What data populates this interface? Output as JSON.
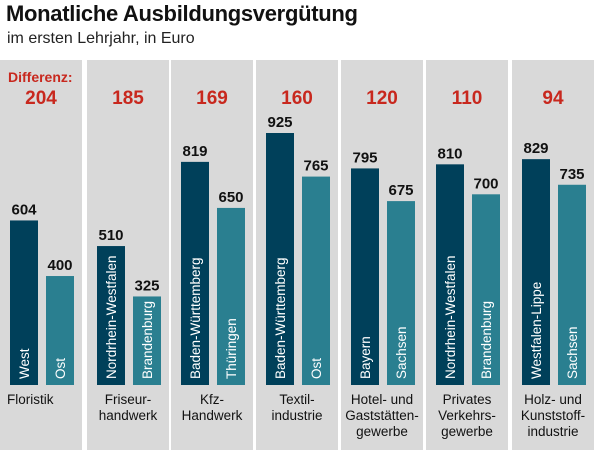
{
  "title": "Monatliche Ausbildungsvergütung",
  "subtitle": "im ersten Lehrjahr, in Euro",
  "colors": {
    "panel": "#d9d9d9",
    "bar_dark": "#00405a",
    "bar_light": "#2a7f90",
    "difference": "#c8281e"
  },
  "chart_data": {
    "type": "bar",
    "title": "Monatliche Ausbildungsvergütung",
    "subtitle": "im ersten Lehrjahr, in Euro",
    "difference_label": "Differenz:",
    "unit": "Euro",
    "ylim": [
      0,
      925
    ],
    "grid": false,
    "groups": [
      {
        "category": [
          "Floristik"
        ],
        "difference": 204,
        "bars": [
          {
            "label": "West",
            "value": 604
          },
          {
            "label": "Ost",
            "value": 400
          }
        ]
      },
      {
        "category": [
          "Friseur-",
          "handwerk"
        ],
        "difference": 185,
        "bars": [
          {
            "label": "Nordrhein-Westfalen",
            "value": 510
          },
          {
            "label": "Brandenburg",
            "value": 325
          }
        ]
      },
      {
        "category": [
          "Kfz-",
          "Handwerk"
        ],
        "difference": 169,
        "bars": [
          {
            "label": "Baden-Württemberg",
            "value": 819
          },
          {
            "label": "Thüringen",
            "value": 650
          }
        ]
      },
      {
        "category": [
          "Textil-",
          "industrie"
        ],
        "difference": 160,
        "bars": [
          {
            "label": "Baden-Württemberg",
            "value": 925
          },
          {
            "label": "Ost",
            "value": 765
          }
        ]
      },
      {
        "category": [
          "Hotel- und",
          "Gaststätten-",
          "gewerbe"
        ],
        "difference": 120,
        "bars": [
          {
            "label": "Bayern",
            "value": 795
          },
          {
            "label": "Sachsen",
            "value": 675
          }
        ]
      },
      {
        "category": [
          "Privates",
          "Verkehrs-",
          "gewerbe"
        ],
        "difference": 110,
        "bars": [
          {
            "label": "Nordrhein-Westfalen",
            "value": 810
          },
          {
            "label": "Brandenburg",
            "value": 700
          }
        ]
      },
      {
        "category": [
          "Holz- und",
          "Kunststoff-",
          "industrie"
        ],
        "difference": 94,
        "bars": [
          {
            "label": "Westfalen-Lippe",
            "value": 829
          },
          {
            "label": "Sachsen",
            "value": 735
          }
        ]
      }
    ]
  }
}
